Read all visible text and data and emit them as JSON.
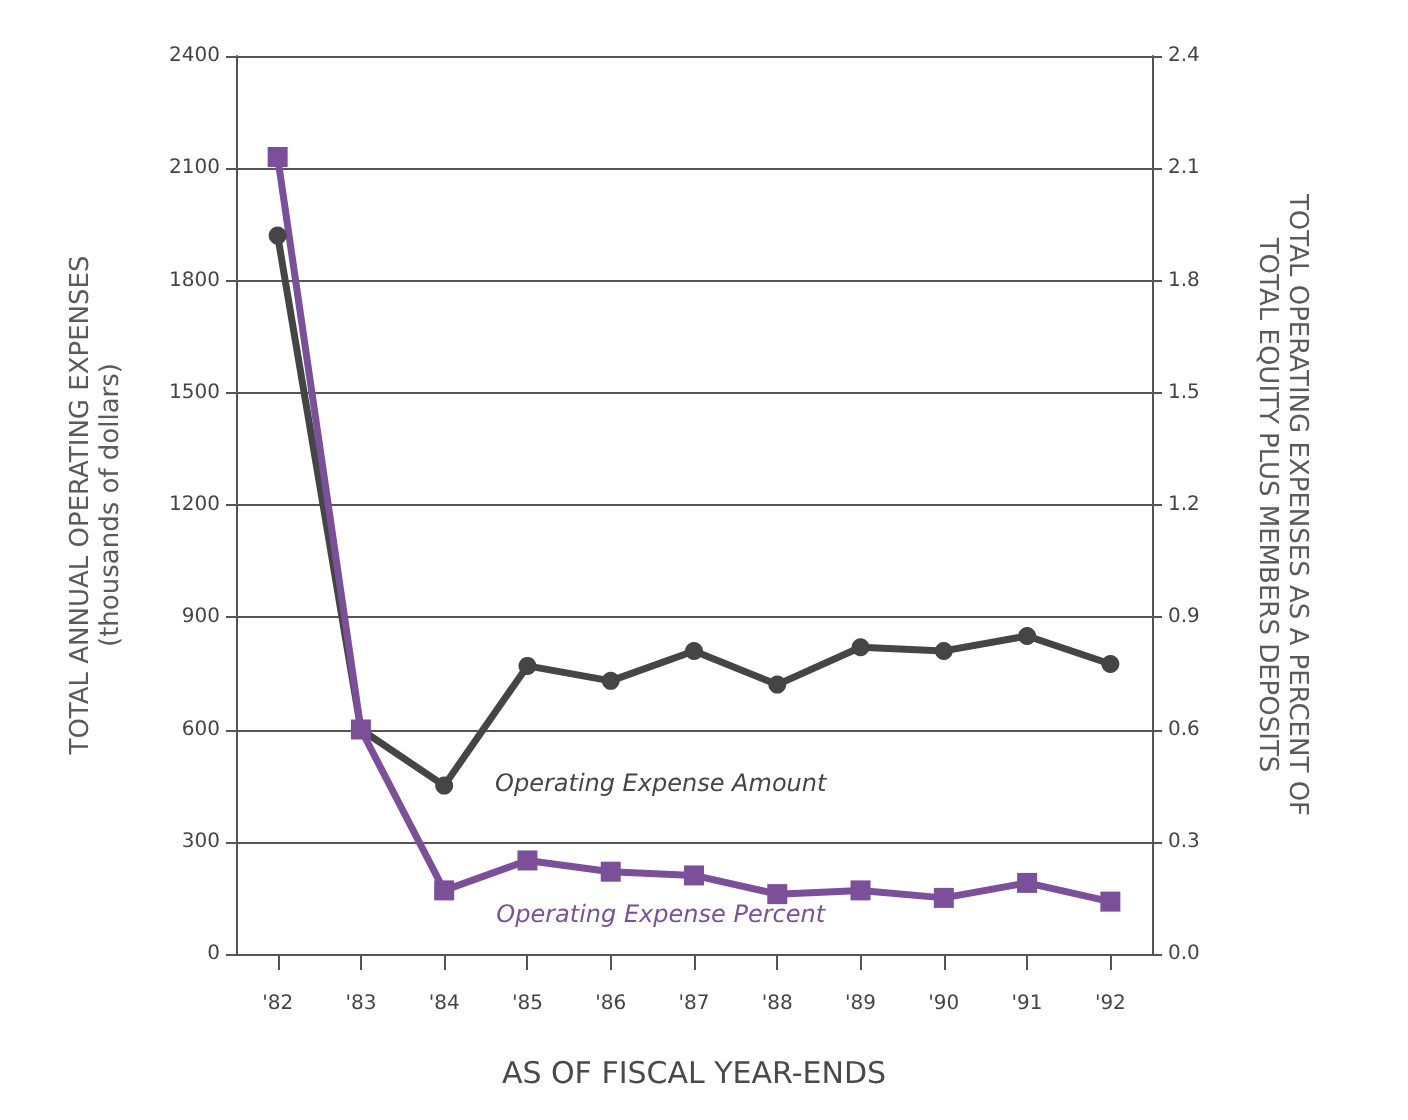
{
  "chart_data": {
    "type": "line",
    "xlabel": "AS OF FISCAL YEAR-ENDS",
    "ylabel": "TOTAL ANNUAL OPERATING EXPENSES\n(thousands of dollars)",
    "y2label": "TOTAL OPERATING EXPENSES AS A PERCENT OF\nTOTAL EQUITY PLUS MEMBERS DEPOSITS",
    "categories": [
      "'82",
      "'83",
      "'84",
      "'85",
      "'86",
      "'87",
      "'88",
      "'89",
      "'90",
      "'91",
      "'92"
    ],
    "series": [
      {
        "name": "Operating Expense Amount",
        "color": "#454545",
        "marker": "circle",
        "values": [
          1920,
          600,
          450,
          770,
          730,
          810,
          720,
          820,
          810,
          850,
          775
        ]
      },
      {
        "name": "Operating Expense Percent",
        "color": "#7b4f9a",
        "marker": "square",
        "axis": "y2",
        "values": [
          2.13,
          0.6,
          0.17,
          0.25,
          0.22,
          0.21,
          0.16,
          0.17,
          0.15,
          0.19,
          0.14
        ]
      }
    ],
    "ylim": [
      0,
      2400
    ],
    "yticks": [
      0,
      300,
      600,
      900,
      1200,
      1500,
      1800,
      2100,
      2400
    ],
    "y2lim": [
      0,
      2.4
    ],
    "y2ticks": [
      {
        "value": 0,
        "label": "0.0"
      },
      0.3,
      0.6,
      0.9,
      1.2,
      1.5,
      1.8,
      2.1,
      2.4
    ],
    "grid": "y",
    "legend": false,
    "line_style": "solid"
  }
}
